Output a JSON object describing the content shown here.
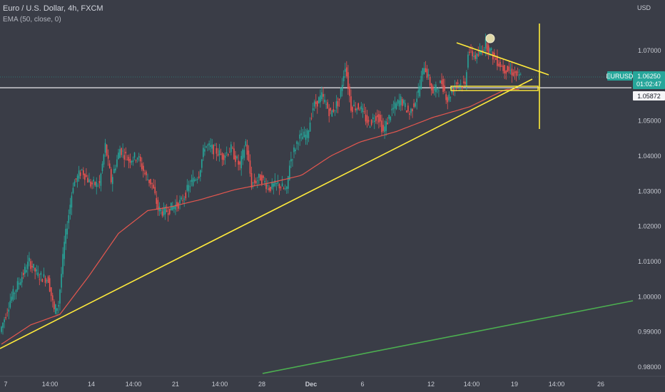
{
  "header": {
    "symbol_title": "Euro / U.S. Dollar, 4h, FXCM",
    "indicator": "EMA (50, close, 0)"
  },
  "axis": {
    "currency": "USD"
  },
  "colors": {
    "background": "#3a3d47",
    "up": "#26a69a",
    "down": "#ef5350",
    "ema": "#e5574f",
    "trendline": "#ffeb3b",
    "green_line": "#4caf50",
    "price_badge": "#26a69a"
  },
  "chart_data": {
    "type": "candlestick",
    "title": "Euro / U.S. Dollar, 4h, FXCM",
    "instrument": "EURUSD",
    "timeframe": "4h",
    "y_axis": {
      "ticks": [
        "1.07000",
        "1.06000",
        "1.05000",
        "1.04000",
        "1.03000",
        "1.02000",
        "1.01000",
        "1.00000",
        "0.99000",
        "0.98000"
      ],
      "range": [
        0.976,
        1.081
      ],
      "side": "right"
    },
    "x_axis": {
      "ticks": [
        "7",
        "14:00",
        "14",
        "14:00",
        "21",
        "14:00",
        "28",
        "Dec",
        "6",
        "12",
        "14:00",
        "19",
        "14:00",
        "26"
      ]
    },
    "grid": false,
    "last_price": {
      "label": "EURUSD",
      "value": "1.06250",
      "countdown": "01:02:47"
    },
    "crosshair_price": "1.05872",
    "series": [
      {
        "name": "EMA (50, close, 0)",
        "points": [
          {
            "i": 0,
            "v": 0.9865
          },
          {
            "i": 20,
            "v": 0.992
          },
          {
            "i": 40,
            "v": 0.995
          },
          {
            "i": 60,
            "v": 1.006
          },
          {
            "i": 80,
            "v": 1.018
          },
          {
            "i": 100,
            "v": 1.0245
          },
          {
            "i": 115,
            "v": 1.0255
          },
          {
            "i": 135,
            "v": 1.0275
          },
          {
            "i": 160,
            "v": 1.0305
          },
          {
            "i": 185,
            "v": 1.0325
          },
          {
            "i": 205,
            "v": 1.0345
          },
          {
            "i": 225,
            "v": 1.04
          },
          {
            "i": 245,
            "v": 1.044
          },
          {
            "i": 270,
            "v": 1.047
          },
          {
            "i": 295,
            "v": 1.051
          },
          {
            "i": 320,
            "v": 1.054
          },
          {
            "i": 345,
            "v": 1.059
          },
          {
            "i": 355,
            "v": 1.059
          }
        ]
      }
    ],
    "price_path": [
      {
        "i": 0,
        "v": 0.99
      },
      {
        "i": 7,
        "v": 0.999
      },
      {
        "i": 14,
        "v": 1.005
      },
      {
        "i": 20,
        "v": 1.01
      },
      {
        "i": 26,
        "v": 1.006
      },
      {
        "i": 33,
        "v": 1.005
      },
      {
        "i": 37,
        "v": 0.996
      },
      {
        "i": 40,
        "v": 0.998
      },
      {
        "i": 44,
        "v": 1.015
      },
      {
        "i": 50,
        "v": 1.032
      },
      {
        "i": 56,
        "v": 1.036
      },
      {
        "i": 62,
        "v": 1.032
      },
      {
        "i": 68,
        "v": 1.032
      },
      {
        "i": 72,
        "v": 1.043
      },
      {
        "i": 76,
        "v": 1.033
      },
      {
        "i": 82,
        "v": 1.042
      },
      {
        "i": 88,
        "v": 1.039
      },
      {
        "i": 94,
        "v": 1.04
      },
      {
        "i": 100,
        "v": 1.034
      },
      {
        "i": 104,
        "v": 1.032
      },
      {
        "i": 108,
        "v": 1.025
      },
      {
        "i": 112,
        "v": 1.024
      },
      {
        "i": 118,
        "v": 1.0255
      },
      {
        "i": 124,
        "v": 1.027
      },
      {
        "i": 130,
        "v": 1.032
      },
      {
        "i": 136,
        "v": 1.035
      },
      {
        "i": 140,
        "v": 1.043
      },
      {
        "i": 146,
        "v": 1.042
      },
      {
        "i": 152,
        "v": 1.04
      },
      {
        "i": 158,
        "v": 1.042
      },
      {
        "i": 164,
        "v": 1.037
      },
      {
        "i": 168,
        "v": 1.044
      },
      {
        "i": 172,
        "v": 1.032
      },
      {
        "i": 178,
        "v": 1.034
      },
      {
        "i": 184,
        "v": 1.031
      },
      {
        "i": 190,
        "v": 1.032
      },
      {
        "i": 196,
        "v": 1.03
      },
      {
        "i": 198,
        "v": 1.038
      },
      {
        "i": 204,
        "v": 1.045
      },
      {
        "i": 210,
        "v": 1.046
      },
      {
        "i": 214,
        "v": 1.054
      },
      {
        "i": 220,
        "v": 1.057
      },
      {
        "i": 226,
        "v": 1.052
      },
      {
        "i": 232,
        "v": 1.056
      },
      {
        "i": 236,
        "v": 1.066
      },
      {
        "i": 240,
        "v": 1.054
      },
      {
        "i": 246,
        "v": 1.054
      },
      {
        "i": 252,
        "v": 1.049
      },
      {
        "i": 258,
        "v": 1.052
      },
      {
        "i": 262,
        "v": 1.047
      },
      {
        "i": 268,
        "v": 1.053
      },
      {
        "i": 274,
        "v": 1.056
      },
      {
        "i": 280,
        "v": 1.052
      },
      {
        "i": 286,
        "v": 1.058
      },
      {
        "i": 290,
        "v": 1.066
      },
      {
        "i": 296,
        "v": 1.058
      },
      {
        "i": 302,
        "v": 1.061
      },
      {
        "i": 306,
        "v": 1.056
      },
      {
        "i": 312,
        "v": 1.061
      },
      {
        "i": 318,
        "v": 1.06
      },
      {
        "i": 320,
        "v": 1.07
      },
      {
        "i": 326,
        "v": 1.068
      },
      {
        "i": 332,
        "v": 1.072
      },
      {
        "i": 338,
        "v": 1.068
      },
      {
        "i": 344,
        "v": 1.065
      },
      {
        "i": 350,
        "v": 1.064
      },
      {
        "i": 355,
        "v": 1.0625
      }
    ]
  }
}
